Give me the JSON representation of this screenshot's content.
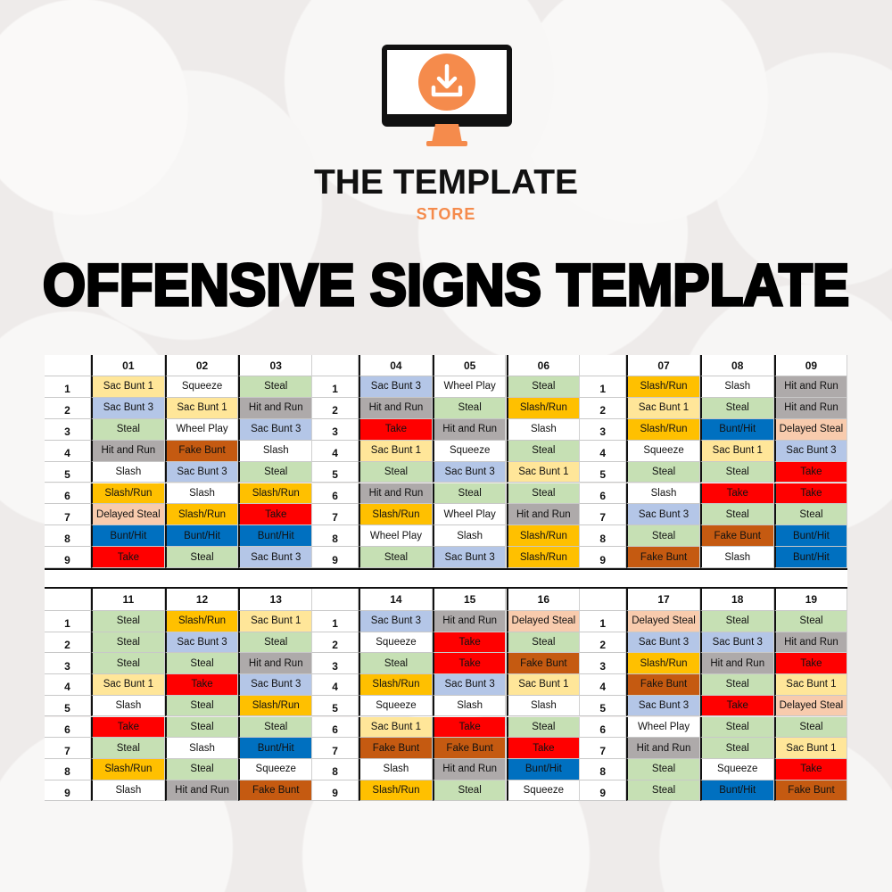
{
  "brand": {
    "name": "THE TEMPLATE",
    "sub": "STORE",
    "icon": "download-monitor-icon",
    "accent": "#f58b4c"
  },
  "title": "OFFENSIVE SIGNS TEMPLATE",
  "sign_colors": {
    "Sac Bunt 1": "#ffe699",
    "Sac Bunt 3": "#b4c6e7",
    "Steal": "#c6e0b4",
    "Hit and Run": "#aeaaaa",
    "Fake Bunt": "#c55a11",
    "Slash": "#ffffff",
    "Squeeze": "#ffffff",
    "Wheel Play": "#ffffff",
    "Slash/Run": "#ffc000",
    "Delayed Steal": "#f8cbad",
    "Bunt/Hit": "#0070c0",
    "Take": "#ff0000"
  },
  "row_numbers": [
    "1",
    "2",
    "3",
    "4",
    "5",
    "6",
    "7",
    "8",
    "9"
  ],
  "sections": [
    {
      "groups": [
        {
          "columns": [
            {
              "header": "01",
              "cells": [
                "Sac Bunt 1",
                "Sac Bunt 3",
                "Steal",
                "Hit and Run",
                "Slash",
                "Slash/Run",
                "Delayed Steal",
                "Bunt/Hit",
                "Take"
              ]
            },
            {
              "header": "02",
              "cells": [
                "Squeeze",
                "Sac Bunt 1",
                "Wheel Play",
                "Fake Bunt",
                "Sac Bunt 3",
                "Slash",
                "Slash/Run",
                "Bunt/Hit",
                "Steal"
              ]
            },
            {
              "header": "03",
              "cells": [
                "Steal",
                "Hit and Run",
                "Sac Bunt 3",
                "Slash",
                "Steal",
                "Slash/Run",
                "Take",
                "Bunt/Hit",
                "Sac Bunt 3"
              ]
            }
          ]
        },
        {
          "columns": [
            {
              "header": "04",
              "cells": [
                "Sac Bunt 3",
                "Hit and Run",
                "Take",
                "Sac Bunt 1",
                "Steal",
                "Hit and Run",
                "Slash/Run",
                "Wheel Play",
                "Steal"
              ]
            },
            {
              "header": "05",
              "cells": [
                "Wheel Play",
                "Steal",
                "Hit and Run",
                "Squeeze",
                "Sac Bunt 3",
                "Steal",
                "Wheel Play",
                "Slash",
                "Sac Bunt 3"
              ]
            },
            {
              "header": "06",
              "cells": [
                "Steal",
                "Slash/Run",
                "Slash",
                "Steal",
                "Sac Bunt 1",
                "Steal",
                "Hit and Run",
                "Slash/Run",
                "Slash/Run"
              ]
            }
          ]
        },
        {
          "columns": [
            {
              "header": "07",
              "cells": [
                "Slash/Run",
                "Sac Bunt 1",
                "Slash/Run",
                "Squeeze",
                "Steal",
                "Slash",
                "Sac Bunt 3",
                "Steal",
                "Fake Bunt"
              ]
            },
            {
              "header": "08",
              "cells": [
                "Slash",
                "Steal",
                "Bunt/Hit",
                "Sac Bunt 1",
                "Steal",
                "Take",
                "Steal",
                "Fake Bunt",
                "Slash"
              ]
            },
            {
              "header": "09",
              "cells": [
                "Hit and Run",
                "Hit and Run",
                "Delayed Steal",
                "Sac Bunt 3",
                "Take",
                "Take",
                "Steal",
                "Bunt/Hit",
                "Bunt/Hit"
              ]
            }
          ]
        }
      ]
    },
    {
      "groups": [
        {
          "columns": [
            {
              "header": "11",
              "cells": [
                "Steal",
                "Steal",
                "Steal",
                "Sac Bunt 1",
                "Slash",
                "Take",
                "Steal",
                "Slash/Run",
                "Slash"
              ]
            },
            {
              "header": "12",
              "cells": [
                "Slash/Run",
                "Sac Bunt 3",
                "Steal",
                "Take",
                "Steal",
                "Steal",
                "Slash",
                "Steal",
                "Hit and Run"
              ]
            },
            {
              "header": "13",
              "cells": [
                "Sac Bunt 1",
                "Steal",
                "Hit and Run",
                "Sac Bunt 3",
                "Slash/Run",
                "Steal",
                "Bunt/Hit",
                "Squeeze",
                "Fake Bunt"
              ]
            }
          ]
        },
        {
          "columns": [
            {
              "header": "14",
              "cells": [
                "Sac Bunt 3",
                "Squeeze",
                "Steal",
                "Slash/Run",
                "Squeeze",
                "Sac Bunt 1",
                "Fake Bunt",
                "Slash",
                "Slash/Run"
              ]
            },
            {
              "header": "15",
              "cells": [
                "Hit and Run",
                "Take",
                "Take",
                "Sac Bunt 3",
                "Slash",
                "Take",
                "Fake Bunt",
                "Hit and Run",
                "Steal"
              ]
            },
            {
              "header": "16",
              "cells": [
                "Delayed Steal",
                "Steal",
                "Fake Bunt",
                "Sac Bunt 1",
                "Slash",
                "Steal",
                "Take",
                "Bunt/Hit",
                "Squeeze"
              ]
            }
          ]
        },
        {
          "columns": [
            {
              "header": "17",
              "cells": [
                "Delayed Steal",
                "Sac Bunt 3",
                "Slash/Run",
                "Fake Bunt",
                "Sac Bunt 3",
                "Wheel Play",
                "Hit and Run",
                "Steal",
                "Steal"
              ]
            },
            {
              "header": "18",
              "cells": [
                "Steal",
                "Sac Bunt 3",
                "Hit and Run",
                "Steal",
                "Take",
                "Steal",
                "Steal",
                "Squeeze",
                "Bunt/Hit"
              ]
            },
            {
              "header": "19",
              "cells": [
                "Steal",
                "Hit and Run",
                "Take",
                "Sac Bunt 1",
                "Delayed Steal",
                "Steal",
                "Sac Bunt 1",
                "Take",
                "Fake Bunt"
              ]
            }
          ]
        }
      ]
    }
  ]
}
